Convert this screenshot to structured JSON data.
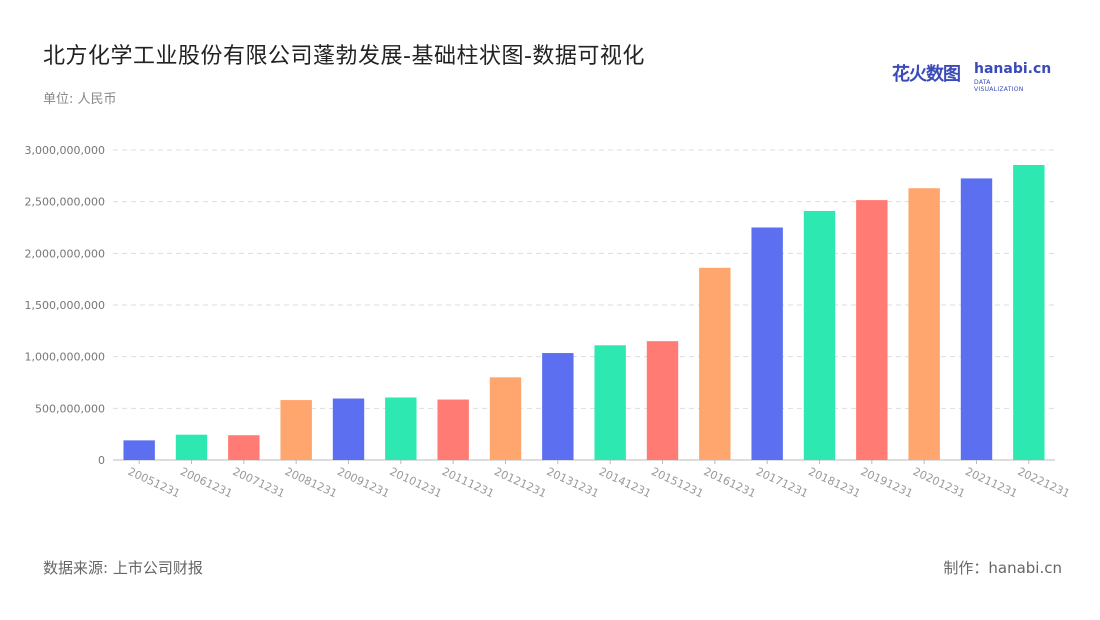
{
  "title": "北方化学工业股份有限公司蓬勃发展-基础柱状图-数据可视化",
  "unit": "单位: 人民币",
  "logo": {
    "cn": "花火数图",
    "en": "hanabi.cn",
    "sub": "DATA VISUALIZATION"
  },
  "footer": {
    "source": "数据来源: 上市公司财报",
    "credit": "制作：hanabi.cn"
  },
  "colors": {
    "palette": [
      "#5b6ff0",
      "#2de8b0",
      "#ff7b73",
      "#ffa56e"
    ],
    "grid": "#dddddd",
    "axis": "#bbbbbb"
  },
  "chart_data": {
    "type": "bar",
    "categories": [
      "20051231",
      "20061231",
      "20071231",
      "20081231",
      "20091231",
      "20101231",
      "20111231",
      "20121231",
      "20131231",
      "20141231",
      "20151231",
      "20161231",
      "20171231",
      "20181231",
      "20191231",
      "20201231",
      "20211231",
      "20221231"
    ],
    "values": [
      190000000,
      245000000,
      240000000,
      580000000,
      595000000,
      605000000,
      585000000,
      800000000,
      1035000000,
      1110000000,
      1150000000,
      1860000000,
      2250000000,
      2410000000,
      2515000000,
      2630000000,
      2725000000,
      2855000000
    ],
    "bar_colors": [
      "#5b6ff0",
      "#2de8b0",
      "#ff7b73",
      "#ffa56e",
      "#5b6ff0",
      "#2de8b0",
      "#ff7b73",
      "#ffa56e",
      "#5b6ff0",
      "#2de8b0",
      "#ff7b73",
      "#ffa56e",
      "#5b6ff0",
      "#2de8b0",
      "#ff7b73",
      "#ffa56e",
      "#5b6ff0",
      "#2de8b0"
    ],
    "yticks": [
      0,
      500000000,
      1000000000,
      1500000000,
      2000000000,
      2500000000,
      3000000000
    ],
    "ytick_labels": [
      "0",
      "500,000,000",
      "1,000,000,000",
      "1,500,000,000",
      "2,000,000,000",
      "2,500,000,000",
      "3,000,000,000"
    ],
    "ylim": [
      0,
      3000000000
    ],
    "grid": true,
    "xlabel": "",
    "ylabel": ""
  }
}
